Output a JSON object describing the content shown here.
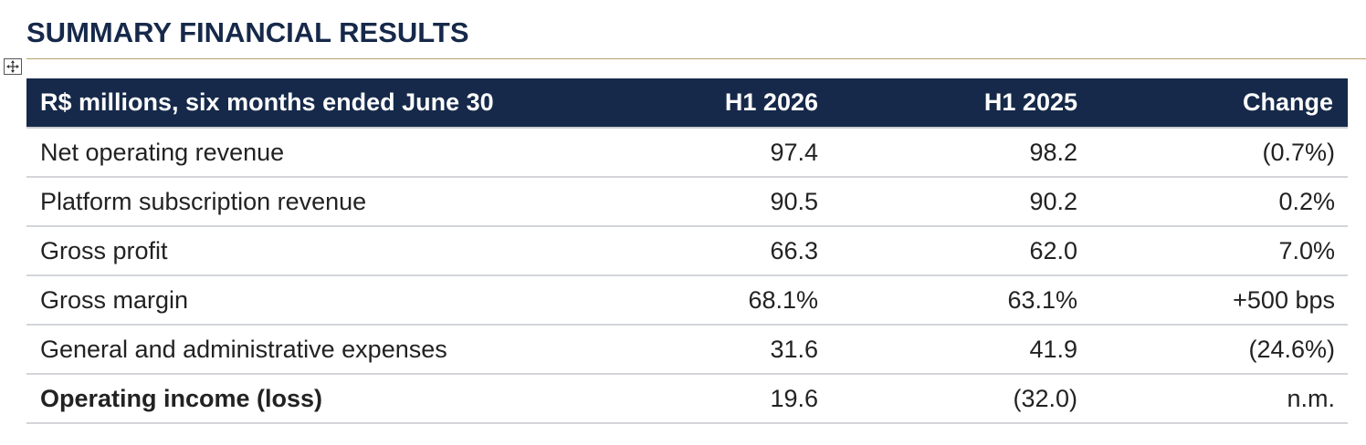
{
  "heading": "SUMMARY FINANCIAL RESULTS",
  "table": {
    "header": {
      "label": "R$ millions, six months ended June 30",
      "col1": "H1 2026",
      "col2": "H1 2025",
      "col3": "Change"
    },
    "rows": [
      {
        "label": "Net operating revenue",
        "h1_2026": "97.4",
        "h1_2025": "98.2",
        "change": "(0.7%)"
      },
      {
        "label": "Platform subscription revenue",
        "h1_2026": "90.5",
        "h1_2025": "90.2",
        "change": "0.2%"
      },
      {
        "label": "Gross profit",
        "h1_2026": "66.3",
        "h1_2025": "62.0",
        "change": "7.0%"
      },
      {
        "label": "Gross margin",
        "h1_2026": "68.1%",
        "h1_2025": "63.1%",
        "change": "+500 bps"
      },
      {
        "label": "General and administrative expenses",
        "h1_2026": "31.6",
        "h1_2025": "41.9",
        "change": "(24.6%)"
      },
      {
        "label": "Operating income (loss)",
        "h1_2026": "19.6",
        "h1_2025": "(32.0)",
        "change": "n.m."
      }
    ]
  },
  "colors": {
    "heading": "#16294a",
    "header_bg": "#16294a",
    "rule": "#b7a16a"
  },
  "icons": {
    "table_handle": "move-handle-icon"
  }
}
